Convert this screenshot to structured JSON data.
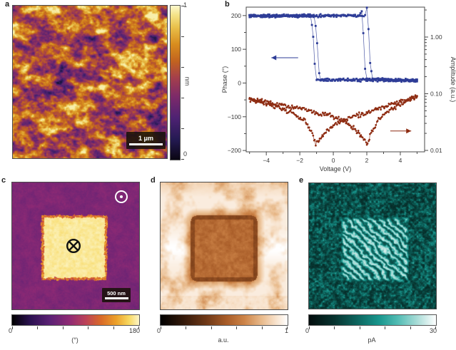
{
  "figure": {
    "background": "#ffffff",
    "text_color": "#333333",
    "panels": {
      "a": {
        "label": "a",
        "scale_bar_label": "1 μm",
        "colorbar": {
          "orientation": "vertical",
          "min_label": "0",
          "max_label": "1",
          "unit": "nm",
          "stops": [
            [
              0,
              "#0a0612"
            ],
            [
              0.13,
              "#241a52"
            ],
            [
              0.27,
              "#4e2273"
            ],
            [
              0.41,
              "#7d2a69"
            ],
            [
              0.53,
              "#a43f4c"
            ],
            [
              0.64,
              "#c2631f"
            ],
            [
              0.75,
              "#d88d1e"
            ],
            [
              0.86,
              "#e9c04a"
            ],
            [
              0.94,
              "#f4e388"
            ],
            [
              1,
              "#fcf8cd"
            ]
          ]
        }
      },
      "b": {
        "label": "b"
      },
      "c": {
        "label": "c",
        "scale_bar_label": "500 nm",
        "symbols": {
          "corner": "polarization-out-of-plane",
          "center": "polarization-into-plane"
        },
        "colorbar": {
          "orientation": "horizontal",
          "min_label": "0",
          "max_label": "180",
          "unit": "(°)",
          "stops": [
            [
              0,
              "#000000"
            ],
            [
              0.14,
              "#2a1150"
            ],
            [
              0.3,
              "#5c2175"
            ],
            [
              0.45,
              "#8e2a74"
            ],
            [
              0.58,
              "#bc4258"
            ],
            [
              0.7,
              "#d96a28"
            ],
            [
              0.82,
              "#eca12a"
            ],
            [
              0.92,
              "#f7d860"
            ],
            [
              1,
              "#fdf6c8"
            ]
          ]
        }
      },
      "d": {
        "label": "d",
        "colorbar": {
          "orientation": "horizontal",
          "min_label": "0",
          "max_label": "1",
          "unit": "a.u.",
          "stops": [
            [
              0,
              "#000000"
            ],
            [
              0.18,
              "#33190a"
            ],
            [
              0.36,
              "#6e3817"
            ],
            [
              0.52,
              "#a85c28"
            ],
            [
              0.66,
              "#cd8448"
            ],
            [
              0.8,
              "#e9bc8e"
            ],
            [
              0.9,
              "#f7e0c8"
            ],
            [
              1,
              "#ffffff"
            ]
          ]
        }
      },
      "e": {
        "label": "e",
        "colorbar": {
          "orientation": "horizontal",
          "min_label": "0",
          "max_label": "30",
          "unit": "pA",
          "stops": [
            [
              0,
              "#020c0c"
            ],
            [
              0.2,
              "#07332f"
            ],
            [
              0.4,
              "#0e6b64"
            ],
            [
              0.55,
              "#18968d"
            ],
            [
              0.7,
              "#52bcb4"
            ],
            [
              0.85,
              "#a8dcd7"
            ],
            [
              1,
              "#ffffff"
            ]
          ]
        }
      }
    }
  },
  "chart_data": {
    "type": "scatter",
    "title": "",
    "xlabel": "Voltage (V)",
    "ylabel_left": "Phase (°)",
    "ylabel_right": "Amplitude (a.u.)",
    "xlim": [
      -5.2,
      5.45
    ],
    "ylim_left": [
      -204,
      225
    ],
    "ylim_right_log": [
      0.00944,
      3.37
    ],
    "x_ticks": {
      "values": [
        -4,
        -2,
        0,
        2,
        4
      ],
      "labels": [
        "−4",
        "−2",
        "0",
        "2",
        "4"
      ]
    },
    "x_minor_ticks": [
      -5,
      -3,
      -1,
      1,
      3,
      5
    ],
    "y_ticks_left": {
      "values": [
        200,
        100,
        0,
        -100,
        -200
      ],
      "labels": [
        "200",
        "100",
        "0",
        "−100",
        "−200"
      ]
    },
    "y_minor_ticks_left": [
      -150,
      -50,
      50,
      150
    ],
    "y_ticks_right": {
      "values": [
        1,
        0.1,
        0.01
      ],
      "labels": [
        "1.00",
        "0.10",
        "0.01"
      ]
    },
    "grid": false,
    "legend": "none",
    "series": [
      {
        "name": "Phase",
        "axis": "left",
        "color": "#2e3d97",
        "marker": "square",
        "sample_step_v": 0.085,
        "noise": 4.5,
        "log": false,
        "branches": [
          {
            "name": "sweep-up-1",
            "seed": 11,
            "points": [
              [
                -5,
                200
              ],
              [
                1.55,
                200
              ],
              [
                1.7,
                215
              ],
              [
                1.8,
                150
              ],
              [
                1.9,
                40
              ],
              [
                2.0,
                12
              ],
              [
                5,
                8
              ]
            ]
          },
          {
            "name": "sweep-up-2",
            "seed": 12,
            "points": [
              [
                -5,
                198
              ],
              [
                1.9,
                200
              ],
              [
                2.0,
                222
              ],
              [
                2.1,
                160
              ],
              [
                2.2,
                60
              ],
              [
                2.35,
                10
              ],
              [
                5,
                6
              ]
            ]
          },
          {
            "name": "sweep-down-1",
            "seed": 13,
            "points": [
              [
                5,
                8
              ],
              [
                -0.75,
                8
              ],
              [
                -0.85,
                30
              ],
              [
                -0.95,
                120
              ],
              [
                -1.05,
                170
              ],
              [
                -1.15,
                200
              ],
              [
                -5,
                200
              ]
            ]
          },
          {
            "name": "sweep-down-2",
            "seed": 14,
            "points": [
              [
                5,
                10
              ],
              [
                -1.0,
                10
              ],
              [
                -1.1,
                60
              ],
              [
                -1.2,
                140
              ],
              [
                -1.35,
                198
              ],
              [
                -5,
                199
              ]
            ]
          }
        ]
      },
      {
        "name": "Amplitude",
        "axis": "right",
        "color": "#8e2c12",
        "marker": "circle",
        "sample_step_v": 0.052,
        "noise": 0.05,
        "log": true,
        "branches": [
          {
            "name": "sweep-up",
            "seed": 21,
            "points": [
              [
                -5,
                0.082
              ],
              [
                -4,
                0.072
              ],
              [
                -3,
                0.062
              ],
              [
                -2,
                0.055
              ],
              [
                -1,
                0.046
              ],
              [
                0,
                0.04
              ],
              [
                0.8,
                0.032
              ],
              [
                1.4,
                0.022
              ],
              [
                1.8,
                0.016
              ],
              [
                2.05,
                0.013
              ],
              [
                2.3,
                0.022
              ],
              [
                2.7,
                0.035
              ],
              [
                3.2,
                0.048
              ],
              [
                4,
                0.065
              ],
              [
                5,
                0.095
              ]
            ]
          },
          {
            "name": "sweep-down",
            "seed": 22,
            "points": [
              [
                5,
                0.09
              ],
              [
                4,
                0.075
              ],
              [
                3,
                0.058
              ],
              [
                2.3,
                0.05
              ],
              [
                1.5,
                0.042
              ],
              [
                0.8,
                0.036
              ],
              [
                0,
                0.028
              ],
              [
                -0.5,
                0.02
              ],
              [
                -0.85,
                0.015
              ],
              [
                -1.05,
                0.013
              ],
              [
                -1.3,
                0.022
              ],
              [
                -1.8,
                0.035
              ],
              [
                -2.5,
                0.047
              ],
              [
                -3.5,
                0.06
              ],
              [
                -4.3,
                0.07
              ],
              [
                -5,
                0.078
              ]
            ]
          }
        ]
      }
    ],
    "annotations": [
      {
        "type": "arrow",
        "series": "Phase",
        "direction": "left",
        "x_from": -2.1,
        "x_to": -3.7,
        "y_phase": 75,
        "color": "#2e3d97"
      },
      {
        "type": "arrow",
        "series": "Amplitude",
        "direction": "right",
        "x_from": 3.4,
        "x_to": 4.65,
        "y_amplitude": 0.022,
        "color": "#8e2c12"
      }
    ]
  }
}
